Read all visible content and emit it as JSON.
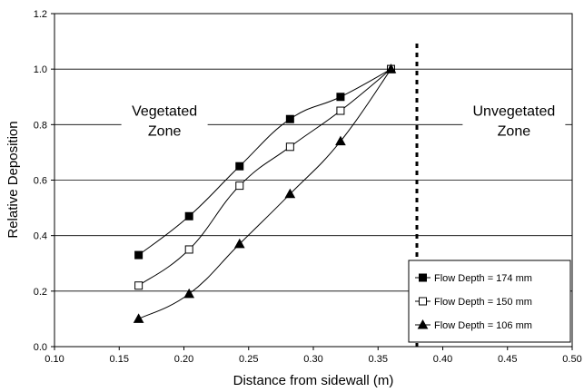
{
  "chart_data": {
    "type": "line",
    "xlabel": "Distance from sidewall (m)",
    "ylabel": "Relative Deposition",
    "xlim": [
      0.1,
      0.5
    ],
    "ylim": [
      0.0,
      1.2
    ],
    "x_ticks": [
      "0.10",
      "0.15",
      "0.20",
      "0.25",
      "0.30",
      "0.35",
      "0.40",
      "0.45",
      "0.50"
    ],
    "y_ticks": [
      "0.0",
      "0.2",
      "0.4",
      "0.6",
      "0.8",
      "1.0",
      "1.2"
    ],
    "grid": "horizontal",
    "legend_position": "bottom-right",
    "boundary_x": 0.38,
    "annotations": [
      {
        "line1": "Vegetated",
        "line2": "Zone",
        "x": 0.185,
        "y": 0.815
      },
      {
        "line1": "Unvegetated",
        "line2": "Zone",
        "x": 0.455,
        "y": 0.815
      }
    ],
    "series": [
      {
        "name": "Flow Depth = 174 mm",
        "marker": "filled-square",
        "x": [
          0.165,
          0.204,
          0.243,
          0.282,
          0.321,
          0.36
        ],
        "y": [
          0.33,
          0.47,
          0.65,
          0.82,
          0.9,
          1.0
        ]
      },
      {
        "name": "Flow Depth = 150 mm",
        "marker": "open-square",
        "x": [
          0.165,
          0.204,
          0.243,
          0.282,
          0.321,
          0.36
        ],
        "y": [
          0.22,
          0.35,
          0.58,
          0.72,
          0.85,
          1.0
        ]
      },
      {
        "name": "Flow Depth = 106 mm",
        "marker": "filled-triangle",
        "x": [
          0.165,
          0.204,
          0.243,
          0.282,
          0.321,
          0.36
        ],
        "y": [
          0.1,
          0.19,
          0.37,
          0.55,
          0.74,
          1.0
        ]
      }
    ]
  }
}
